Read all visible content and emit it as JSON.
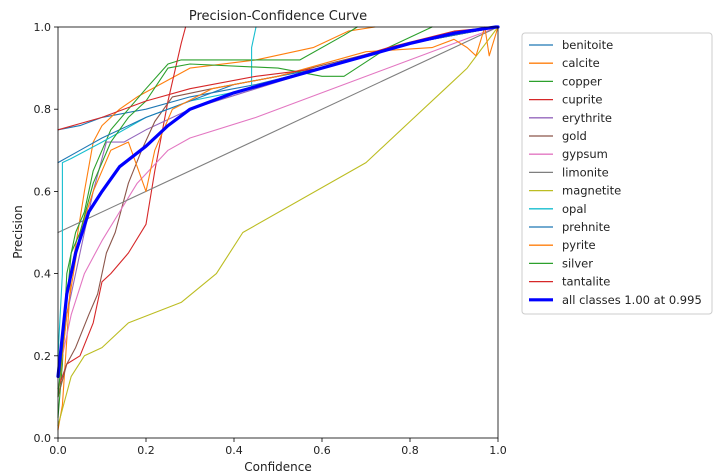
{
  "chart_data": {
    "type": "line",
    "title": "Precision-Confidence Curve",
    "xlabel": "Confidence",
    "ylabel": "Precision",
    "xlim": [
      0,
      1
    ],
    "ylim": [
      0,
      1
    ],
    "x_ticks": [
      "0.0",
      "0.2",
      "0.4",
      "0.6",
      "0.8",
      "1.0"
    ],
    "y_ticks": [
      "0.0",
      "0.2",
      "0.4",
      "0.6",
      "0.8",
      "1.0"
    ],
    "grid": false,
    "legend_position": "outside-right",
    "series": [
      {
        "name": "benitoite",
        "color": "#1f77b4",
        "points": [
          [
            0,
            0.75
          ],
          [
            0.05,
            0.76
          ],
          [
            0.1,
            0.78
          ],
          [
            0.2,
            0.8
          ],
          [
            0.3,
            0.83
          ],
          [
            0.45,
            0.86
          ],
          [
            0.6,
            0.9
          ],
          [
            0.8,
            0.96
          ],
          [
            1,
            1
          ]
        ]
      },
      {
        "name": "calcite",
        "color": "#ff7f0e",
        "points": [
          [
            0,
            0.02
          ],
          [
            0.01,
            0.08
          ],
          [
            0.03,
            0.4
          ],
          [
            0.06,
            0.6
          ],
          [
            0.08,
            0.72
          ],
          [
            0.1,
            0.76
          ],
          [
            0.14,
            0.8
          ],
          [
            0.18,
            0.83
          ],
          [
            0.3,
            0.9
          ],
          [
            0.45,
            0.92
          ],
          [
            0.58,
            0.95
          ],
          [
            0.66,
            0.99
          ],
          [
            0.72,
            1
          ]
        ]
      },
      {
        "name": "copper",
        "color": "#2ca02c",
        "points": [
          [
            0,
            0.05
          ],
          [
            0.01,
            0.18
          ],
          [
            0.02,
            0.4
          ],
          [
            0.04,
            0.5
          ],
          [
            0.06,
            0.55
          ],
          [
            0.08,
            0.65
          ],
          [
            0.12,
            0.75
          ],
          [
            0.16,
            0.8
          ],
          [
            0.2,
            0.85
          ],
          [
            0.25,
            0.91
          ],
          [
            0.28,
            0.92
          ],
          [
            0.4,
            0.92
          ],
          [
            0.55,
            0.92
          ],
          [
            0.65,
            0.98
          ],
          [
            0.68,
            1
          ]
        ]
      },
      {
        "name": "cuprite",
        "color": "#d62728",
        "points": [
          [
            0,
            0.12
          ],
          [
            0.02,
            0.18
          ],
          [
            0.05,
            0.2
          ],
          [
            0.08,
            0.28
          ],
          [
            0.1,
            0.38
          ],
          [
            0.12,
            0.4
          ],
          [
            0.16,
            0.45
          ],
          [
            0.2,
            0.52
          ],
          [
            0.22,
            0.65
          ],
          [
            0.25,
            0.82
          ],
          [
            0.28,
            0.96
          ],
          [
            0.29,
            1
          ]
        ]
      },
      {
        "name": "erythrite",
        "color": "#9467bd",
        "points": [
          [
            0,
            0.1
          ],
          [
            0.02,
            0.3
          ],
          [
            0.05,
            0.45
          ],
          [
            0.08,
            0.6
          ],
          [
            0.11,
            0.72
          ],
          [
            0.15,
            0.72
          ],
          [
            0.2,
            0.75
          ],
          [
            0.3,
            0.8
          ],
          [
            0.45,
            0.85
          ],
          [
            0.6,
            0.9
          ],
          [
            0.7,
            0.93
          ],
          [
            0.8,
            0.96
          ],
          [
            1,
            1
          ]
        ]
      },
      {
        "name": "gold",
        "color": "#8c564b",
        "points": [
          [
            0,
            0.1
          ],
          [
            0.02,
            0.18
          ],
          [
            0.04,
            0.22
          ],
          [
            0.07,
            0.3
          ],
          [
            0.09,
            0.35
          ],
          [
            0.11,
            0.45
          ],
          [
            0.13,
            0.5
          ],
          [
            0.16,
            0.62
          ],
          [
            0.19,
            0.7
          ],
          [
            0.22,
            0.77
          ],
          [
            0.26,
            0.83
          ],
          [
            0.35,
            0.85
          ],
          [
            0.5,
            0.88
          ],
          [
            0.65,
            0.92
          ],
          [
            0.8,
            0.96
          ],
          [
            1,
            1
          ]
        ]
      },
      {
        "name": "gypsum",
        "color": "#e377c2",
        "points": [
          [
            0,
            0.15
          ],
          [
            0.03,
            0.3
          ],
          [
            0.06,
            0.4
          ],
          [
            0.1,
            0.48
          ],
          [
            0.14,
            0.55
          ],
          [
            0.18,
            0.62
          ],
          [
            0.25,
            0.7
          ],
          [
            0.3,
            0.73
          ],
          [
            0.45,
            0.78
          ],
          [
            0.65,
            0.86
          ],
          [
            0.8,
            0.92
          ],
          [
            1,
            1
          ]
        ]
      },
      {
        "name": "limonite",
        "color": "#7f7f7f",
        "points": [
          [
            0,
            0.5
          ],
          [
            1,
            1
          ]
        ]
      },
      {
        "name": "magnetite",
        "color": "#bcbd22",
        "points": [
          [
            0,
            0.03
          ],
          [
            0.03,
            0.15
          ],
          [
            0.06,
            0.2
          ],
          [
            0.1,
            0.22
          ],
          [
            0.16,
            0.28
          ],
          [
            0.28,
            0.33
          ],
          [
            0.36,
            0.4
          ],
          [
            0.42,
            0.5
          ],
          [
            0.7,
            0.67
          ],
          [
            0.8,
            0.77
          ],
          [
            0.88,
            0.85
          ],
          [
            0.93,
            0.9
          ],
          [
            1,
            1
          ]
        ]
      },
      {
        "name": "opal",
        "color": "#17becf",
        "points": [
          [
            0,
            0.2
          ],
          [
            0.01,
            0.4
          ],
          [
            0.01,
            0.67
          ],
          [
            0.03,
            0.68
          ],
          [
            0.1,
            0.72
          ],
          [
            0.2,
            0.78
          ],
          [
            0.3,
            0.82
          ],
          [
            0.44,
            0.85
          ],
          [
            0.44,
            0.95
          ],
          [
            0.45,
            1
          ]
        ]
      },
      {
        "name": "prehnite",
        "color": "#1f77b4",
        "points": [
          [
            0,
            0.67
          ],
          [
            0.05,
            0.7
          ],
          [
            0.1,
            0.73
          ],
          [
            0.2,
            0.78
          ],
          [
            0.3,
            0.82
          ],
          [
            0.4,
            0.86
          ],
          [
            0.6,
            0.9
          ],
          [
            0.8,
            0.96
          ],
          [
            1,
            1
          ]
        ]
      },
      {
        "name": "pyrite",
        "color": "#ff7f0e",
        "points": [
          [
            0,
            0.1
          ],
          [
            0.02,
            0.3
          ],
          [
            0.05,
            0.5
          ],
          [
            0.08,
            0.6
          ],
          [
            0.12,
            0.7
          ],
          [
            0.16,
            0.72
          ],
          [
            0.2,
            0.6
          ],
          [
            0.22,
            0.7
          ],
          [
            0.26,
            0.8
          ],
          [
            0.35,
            0.85
          ],
          [
            0.5,
            0.88
          ],
          [
            0.7,
            0.94
          ],
          [
            0.85,
            0.95
          ],
          [
            0.9,
            0.97
          ],
          [
            0.93,
            0.95
          ],
          [
            0.95,
            0.93
          ],
          [
            0.97,
            1
          ],
          [
            0.98,
            0.93
          ],
          [
            1,
            1
          ]
        ]
      },
      {
        "name": "silver",
        "color": "#2ca02c",
        "points": [
          [
            0,
            0.1
          ],
          [
            0.03,
            0.45
          ],
          [
            0.05,
            0.5
          ],
          [
            0.08,
            0.62
          ],
          [
            0.12,
            0.72
          ],
          [
            0.16,
            0.78
          ],
          [
            0.2,
            0.82
          ],
          [
            0.25,
            0.9
          ],
          [
            0.3,
            0.91
          ],
          [
            0.5,
            0.9
          ],
          [
            0.6,
            0.88
          ],
          [
            0.65,
            0.88
          ],
          [
            0.75,
            0.95
          ],
          [
            0.85,
            1
          ]
        ]
      },
      {
        "name": "tantalite",
        "color": "#d62728",
        "points": [
          [
            0,
            0.75
          ],
          [
            0.1,
            0.78
          ],
          [
            0.2,
            0.82
          ],
          [
            0.3,
            0.85
          ],
          [
            0.45,
            0.88
          ],
          [
            0.6,
            0.9
          ],
          [
            0.75,
            0.95
          ],
          [
            0.9,
            0.99
          ],
          [
            1,
            1
          ]
        ]
      },
      {
        "name": "all classes 1.00 at 0.995",
        "color": "#0000ff",
        "bold": true,
        "points": [
          [
            0,
            0.15
          ],
          [
            0.01,
            0.25
          ],
          [
            0.02,
            0.35
          ],
          [
            0.04,
            0.45
          ],
          [
            0.07,
            0.55
          ],
          [
            0.1,
            0.6
          ],
          [
            0.14,
            0.66
          ],
          [
            0.2,
            0.71
          ],
          [
            0.25,
            0.76
          ],
          [
            0.3,
            0.8
          ],
          [
            0.4,
            0.84
          ],
          [
            0.5,
            0.87
          ],
          [
            0.6,
            0.9
          ],
          [
            0.7,
            0.93
          ],
          [
            0.8,
            0.96
          ],
          [
            0.9,
            0.985
          ],
          [
            0.995,
            1
          ],
          [
            1,
            1
          ]
        ]
      }
    ]
  }
}
